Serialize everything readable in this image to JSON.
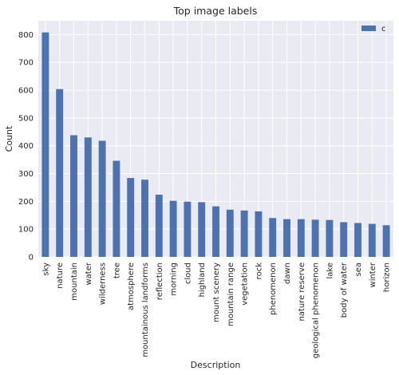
{
  "chart_data": {
    "type": "bar",
    "title": "Top image labels",
    "xlabel": "Description",
    "ylabel": "Count",
    "categories": [
      "sky",
      "nature",
      "mountain",
      "water",
      "wilderness",
      "tree",
      "atmosphere",
      "mountainous landforms",
      "reflection",
      "morning",
      "cloud",
      "highland",
      "mount scenery",
      "mountain range",
      "vegetation",
      "rock",
      "phenomenon",
      "dawn",
      "nature reserve",
      "geological phenomenon",
      "lake",
      "body of water",
      "sea",
      "winter",
      "horizon"
    ],
    "series": [
      {
        "name": "c",
        "color": "#4c72b0",
        "values": [
          808,
          604,
          438,
          430,
          418,
          346,
          284,
          278,
          224,
          202,
          199,
          197,
          182,
          170,
          167,
          164,
          140,
          136,
          136,
          134,
          133,
          125,
          122,
          119,
          114
        ]
      }
    ],
    "ylim": [
      0,
      850
    ],
    "yticks": [
      0,
      100,
      200,
      300,
      400,
      500,
      600,
      700,
      800
    ],
    "grid": true,
    "legend_position": "top-right",
    "background_color": "#eaeaf2",
    "grid_color": "#ffffff"
  }
}
